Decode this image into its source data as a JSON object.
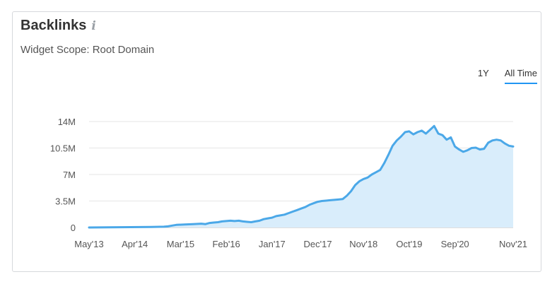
{
  "widget": {
    "title": "Backlinks",
    "info_icon": "info-icon",
    "subtitle": "Widget Scope: Root Domain",
    "tabs": [
      {
        "label": "1Y",
        "active": false
      },
      {
        "label": "All Time",
        "active": true
      }
    ]
  },
  "colors": {
    "line": "#4ba8e8",
    "fill": "#d9edfb",
    "grid": "#e6e6e6",
    "axis": "#bdbdbd"
  },
  "chart_data": {
    "type": "area",
    "title": "",
    "xlabel": "",
    "ylabel": "",
    "ylim": [
      0,
      14
    ],
    "y_ticks": [
      {
        "value": 0,
        "label": "0"
      },
      {
        "value": 3.5,
        "label": "3.5M"
      },
      {
        "value": 7,
        "label": "7M"
      },
      {
        "value": 10.5,
        "label": "10.5M"
      },
      {
        "value": 14,
        "label": "14M"
      }
    ],
    "x_ticks": [
      {
        "value": 0,
        "label": "May'13"
      },
      {
        "value": 11,
        "label": "Apr'14"
      },
      {
        "value": 22,
        "label": "Mar'15"
      },
      {
        "value": 33,
        "label": "Feb'16"
      },
      {
        "value": 44,
        "label": "Jan'17"
      },
      {
        "value": 55,
        "label": "Dec'17"
      },
      {
        "value": 66,
        "label": "Nov'18"
      },
      {
        "value": 77,
        "label": "Oct'19"
      },
      {
        "value": 88,
        "label": "Sep'20"
      },
      {
        "value": 102,
        "label": "Nov'21"
      }
    ],
    "grid": true,
    "xlim": [
      0,
      102
    ],
    "series": [
      {
        "name": "",
        "points": [
          [
            0,
            0
          ],
          [
            5,
            0.02
          ],
          [
            10,
            0.05
          ],
          [
            15,
            0.07
          ],
          [
            18,
            0.1
          ],
          [
            19,
            0.15
          ],
          [
            20,
            0.25
          ],
          [
            21,
            0.35
          ],
          [
            23,
            0.4
          ],
          [
            25,
            0.45
          ],
          [
            27,
            0.5
          ],
          [
            28,
            0.45
          ],
          [
            29,
            0.6
          ],
          [
            30,
            0.65
          ],
          [
            31,
            0.7
          ],
          [
            32,
            0.8
          ],
          [
            33,
            0.85
          ],
          [
            34,
            0.9
          ],
          [
            35,
            0.85
          ],
          [
            36,
            0.9
          ],
          [
            37,
            0.8
          ],
          [
            38,
            0.75
          ],
          [
            39,
            0.7
          ],
          [
            40,
            0.8
          ],
          [
            41,
            0.9
          ],
          [
            42,
            1.1
          ],
          [
            43,
            1.2
          ],
          [
            44,
            1.3
          ],
          [
            45,
            1.5
          ],
          [
            46,
            1.6
          ],
          [
            47,
            1.7
          ],
          [
            48,
            1.9
          ],
          [
            49,
            2.1
          ],
          [
            50,
            2.3
          ],
          [
            51,
            2.5
          ],
          [
            52,
            2.7
          ],
          [
            53,
            3.0
          ],
          [
            54,
            3.2
          ],
          [
            55,
            3.4
          ],
          [
            56,
            3.5
          ],
          [
            57,
            3.55
          ],
          [
            58,
            3.6
          ],
          [
            59,
            3.65
          ],
          [
            60,
            3.7
          ],
          [
            61,
            3.75
          ],
          [
            62,
            4.2
          ],
          [
            63,
            4.8
          ],
          [
            64,
            5.6
          ],
          [
            65,
            6.1
          ],
          [
            66,
            6.4
          ],
          [
            67,
            6.6
          ],
          [
            68,
            7.0
          ],
          [
            69,
            7.3
          ],
          [
            70,
            7.6
          ],
          [
            71,
            8.5
          ],
          [
            72,
            9.6
          ],
          [
            73,
            10.8
          ],
          [
            74,
            11.5
          ],
          [
            75,
            12.0
          ],
          [
            76,
            12.6
          ],
          [
            77,
            12.7
          ],
          [
            78,
            12.3
          ],
          [
            79,
            12.6
          ],
          [
            80,
            12.8
          ],
          [
            81,
            12.4
          ],
          [
            82,
            12.9
          ],
          [
            83,
            13.4
          ],
          [
            84,
            12.4
          ],
          [
            85,
            12.2
          ],
          [
            86,
            11.6
          ],
          [
            87,
            11.9
          ],
          [
            88,
            10.7
          ],
          [
            89,
            10.3
          ],
          [
            90,
            10.0
          ],
          [
            91,
            10.2
          ],
          [
            92,
            10.5
          ],
          [
            93,
            10.55
          ],
          [
            94,
            10.3
          ],
          [
            95,
            10.4
          ],
          [
            96,
            11.2
          ],
          [
            97,
            11.5
          ],
          [
            98,
            11.6
          ],
          [
            99,
            11.5
          ],
          [
            100,
            11.1
          ],
          [
            101,
            10.8
          ],
          [
            102,
            10.7
          ]
        ]
      }
    ]
  }
}
